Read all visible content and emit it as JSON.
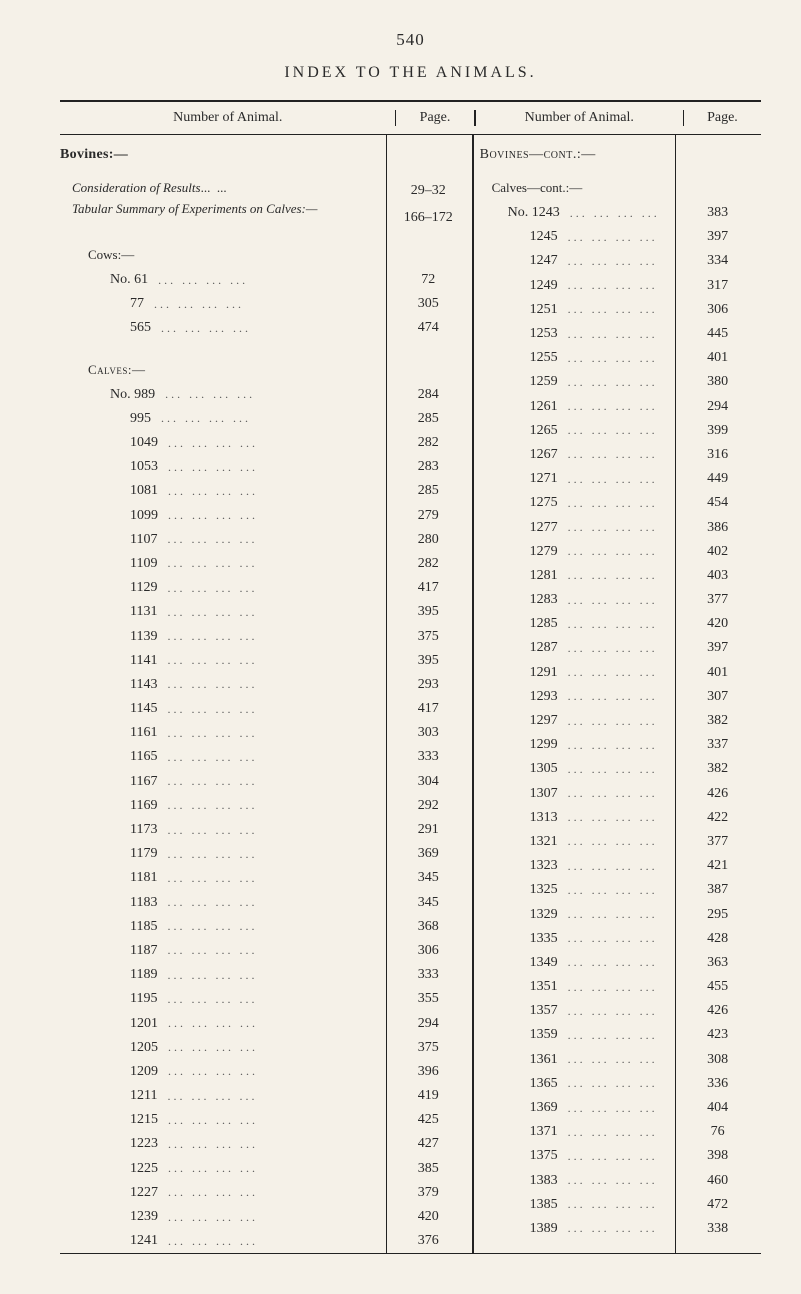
{
  "pageNumber": "540",
  "title": "INDEX TO THE ANIMALS.",
  "headers": {
    "animalLeft": "Number of Animal.",
    "pageLeft": "Page.",
    "animalRight": "Number of Animal.",
    "pageRight": "Page."
  },
  "left": {
    "heading": "Bovines:—",
    "sub1": {
      "label": "Consideration of Results",
      "page": "29–32"
    },
    "sub2": {
      "label": "Tabular Summary of Experiments on Calves:—",
      "page": "166–172"
    },
    "cowsHeading": "Cows:—",
    "cowsRows": [
      {
        "no": "No. 61",
        "page": "72"
      },
      {
        "no": "77",
        "page": "305"
      },
      {
        "no": "565",
        "page": "474"
      }
    ],
    "calvesHeading": "Calves:—",
    "calvesRows": [
      {
        "no": "No. 989",
        "page": "284"
      },
      {
        "no": "995",
        "page": "285"
      },
      {
        "no": "1049",
        "page": "282"
      },
      {
        "no": "1053",
        "page": "283"
      },
      {
        "no": "1081",
        "page": "285"
      },
      {
        "no": "1099",
        "page": "279"
      },
      {
        "no": "1107",
        "page": "280"
      },
      {
        "no": "1109",
        "page": "282"
      },
      {
        "no": "1129",
        "page": "417"
      },
      {
        "no": "1131",
        "page": "395"
      },
      {
        "no": "1139",
        "page": "375"
      },
      {
        "no": "1141",
        "page": "395"
      },
      {
        "no": "1143",
        "page": "293"
      },
      {
        "no": "1145",
        "page": "417"
      },
      {
        "no": "1161",
        "page": "303"
      },
      {
        "no": "1165",
        "page": "333"
      },
      {
        "no": "1167",
        "page": "304"
      },
      {
        "no": "1169",
        "page": "292"
      },
      {
        "no": "1173",
        "page": "291"
      },
      {
        "no": "1179",
        "page": "369"
      },
      {
        "no": "1181",
        "page": "345"
      },
      {
        "no": "1183",
        "page": "345"
      },
      {
        "no": "1185",
        "page": "368"
      },
      {
        "no": "1187",
        "page": "306"
      },
      {
        "no": "1189",
        "page": "333"
      },
      {
        "no": "1195",
        "page": "355"
      },
      {
        "no": "1201",
        "page": "294"
      },
      {
        "no": "1205",
        "page": "375"
      },
      {
        "no": "1209",
        "page": "396"
      },
      {
        "no": "1211",
        "page": "419"
      },
      {
        "no": "1215",
        "page": "425"
      },
      {
        "no": "1223",
        "page": "427"
      },
      {
        "no": "1225",
        "page": "385"
      },
      {
        "no": "1227",
        "page": "379"
      },
      {
        "no": "1239",
        "page": "420"
      },
      {
        "no": "1241",
        "page": "376"
      }
    ]
  },
  "right": {
    "heading": "Bovines—cont.:—",
    "sub1": "Calves—cont.:—",
    "rows": [
      {
        "no": "No. 1243",
        "page": "383"
      },
      {
        "no": "1245",
        "page": "397"
      },
      {
        "no": "1247",
        "page": "334"
      },
      {
        "no": "1249",
        "page": "317"
      },
      {
        "no": "1251",
        "page": "306"
      },
      {
        "no": "1253",
        "page": "445"
      },
      {
        "no": "1255",
        "page": "401"
      },
      {
        "no": "1259",
        "page": "380"
      },
      {
        "no": "1261",
        "page": "294"
      },
      {
        "no": "1265",
        "page": "399"
      },
      {
        "no": "1267",
        "page": "316"
      },
      {
        "no": "1271",
        "page": "449"
      },
      {
        "no": "1275",
        "page": "454"
      },
      {
        "no": "1277",
        "page": "386"
      },
      {
        "no": "1279",
        "page": "402"
      },
      {
        "no": "1281",
        "page": "403"
      },
      {
        "no": "1283",
        "page": "377"
      },
      {
        "no": "1285",
        "page": "420"
      },
      {
        "no": "1287",
        "page": "397"
      },
      {
        "no": "1291",
        "page": "401"
      },
      {
        "no": "1293",
        "page": "307"
      },
      {
        "no": "1297",
        "page": "382"
      },
      {
        "no": "1299",
        "page": "337"
      },
      {
        "no": "1305",
        "page": "382"
      },
      {
        "no": "1307",
        "page": "426"
      },
      {
        "no": "1313",
        "page": "422"
      },
      {
        "no": "1321",
        "page": "377"
      },
      {
        "no": "1323",
        "page": "421"
      },
      {
        "no": "1325",
        "page": "387"
      },
      {
        "no": "1329",
        "page": "295"
      },
      {
        "no": "1335",
        "page": "428"
      },
      {
        "no": "1349",
        "page": "363"
      },
      {
        "no": "1351",
        "page": "455"
      },
      {
        "no": "1357",
        "page": "426"
      },
      {
        "no": "1359",
        "page": "423"
      },
      {
        "no": "1361",
        "page": "308"
      },
      {
        "no": "1365",
        "page": "336"
      },
      {
        "no": "1369",
        "page": "404"
      },
      {
        "no": "1371",
        "page": "76"
      },
      {
        "no": "1375",
        "page": "398"
      },
      {
        "no": "1383",
        "page": "460"
      },
      {
        "no": "1385",
        "page": "472"
      },
      {
        "no": "1389",
        "page": "338"
      }
    ]
  }
}
